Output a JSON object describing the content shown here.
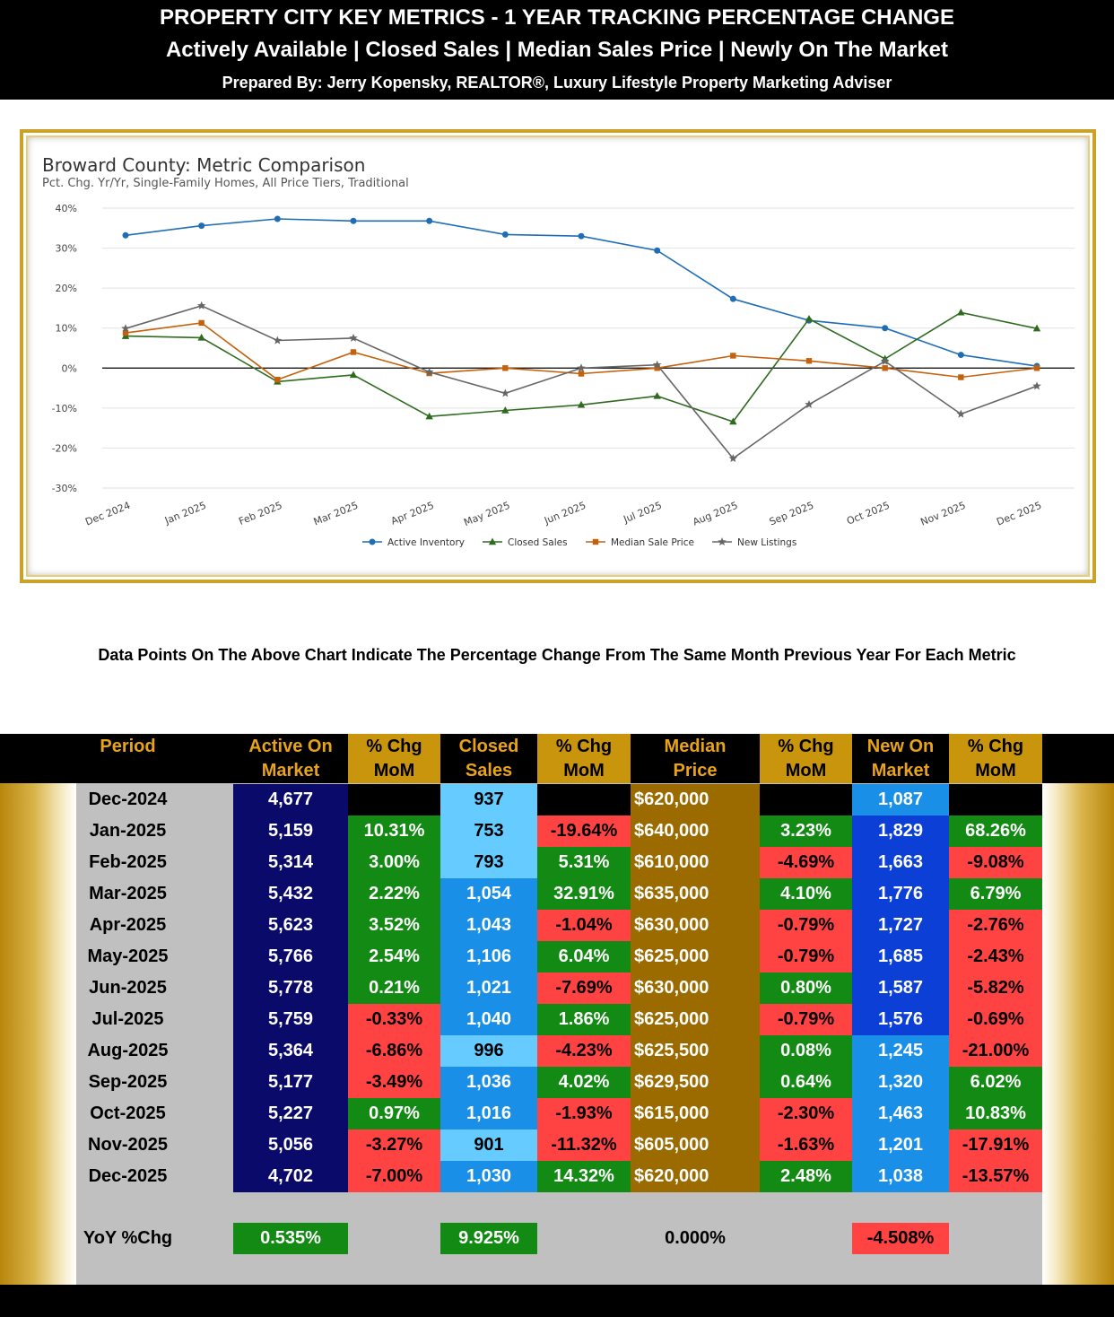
{
  "header": {
    "title": "PROPERTY CITY KEY METRICS - 1 YEAR TRACKING PERCENTAGE CHANGE",
    "subtitle": "Actively Available | Closed Sales | Median Sales Price | Newly On The Market",
    "prepared_by": "Prepared By: Jerry Kopensky, REALTOR®, Luxury Lifestyle Property Marketing Adviser"
  },
  "note": "Data Points On The Above Chart Indicate The Percentage Change From The Same Month Previous Year For Each Metric",
  "chart_data": {
    "type": "line",
    "title": "Broward County: Metric Comparison",
    "subtitle": "Pct. Chg. Yr/Yr, Single-Family Homes, All Price Tiers, Traditional",
    "x": [
      "Dec 2024",
      "Jan 2025",
      "Feb 2025",
      "Mar 2025",
      "Apr 2025",
      "May 2025",
      "Jun 2025",
      "Jul 2025",
      "Aug 2025",
      "Sep 2025",
      "Oct 2025",
      "Nov 2025",
      "Dec 2025"
    ],
    "yticks": [
      "40%",
      "30%",
      "20%",
      "10%",
      "0%",
      "-10%",
      "-20%",
      "-30%"
    ],
    "ylim": [
      -30,
      40
    ],
    "grid": true,
    "legend": "bottom",
    "series": [
      {
        "name": "Active Inventory",
        "color": "#1f6eb5",
        "marker": "circle",
        "values": [
          33.2,
          35.6,
          37.3,
          36.8,
          36.8,
          33.4,
          33.0,
          29.4,
          17.3,
          11.9,
          10.0,
          3.3,
          0.5
        ]
      },
      {
        "name": "Closed Sales",
        "color": "#2e6b1f",
        "marker": "triangle",
        "values": [
          8.0,
          7.6,
          -3.4,
          -1.7,
          -12.1,
          -10.6,
          -9.2,
          -7.0,
          -13.4,
          12.3,
          2.3,
          13.9,
          9.9
        ]
      },
      {
        "name": "Median Sale Price",
        "color": "#c5600b",
        "marker": "square",
        "values": [
          8.8,
          11.3,
          -2.9,
          4.0,
          -1.3,
          0.0,
          -1.4,
          0.0,
          3.1,
          1.8,
          0.0,
          -2.3,
          0.0
        ]
      },
      {
        "name": "New Listings",
        "color": "#666666",
        "marker": "star",
        "values": [
          9.9,
          15.6,
          6.9,
          7.5,
          -1.0,
          -6.3,
          0.0,
          0.8,
          -22.6,
          -9.1,
          1.7,
          -11.5,
          -4.5
        ]
      }
    ]
  },
  "table": {
    "headers": [
      {
        "l1": "Period",
        "l2": ""
      },
      {
        "l1": "Active On",
        "l2": "Market"
      },
      {
        "l1": "% Chg",
        "l2": "MoM"
      },
      {
        "l1": "Closed",
        "l2": "Sales"
      },
      {
        "l1": "% Chg",
        "l2": "MoM"
      },
      {
        "l1": "Median",
        "l2": "Price"
      },
      {
        "l1": "% Chg",
        "l2": "MoM"
      },
      {
        "l1": "New On",
        "l2": "Market"
      },
      {
        "l1": "% Chg",
        "l2": "MoM"
      }
    ],
    "rows": [
      {
        "period": "Dec-2024",
        "active": "4,677",
        "active_chg": "",
        "closed": "937",
        "closed_chg": "",
        "median": "$620,000",
        "median_chg": "",
        "new": "1,087",
        "new_chg": ""
      },
      {
        "period": "Jan-2025",
        "active": "5,159",
        "active_chg": "10.31%",
        "closed": "753",
        "closed_chg": "-19.64%",
        "median": "$640,000",
        "median_chg": "3.23%",
        "new": "1,829",
        "new_chg": "68.26%"
      },
      {
        "period": "Feb-2025",
        "active": "5,314",
        "active_chg": "3.00%",
        "closed": "793",
        "closed_chg": "5.31%",
        "median": "$610,000",
        "median_chg": "-4.69%",
        "new": "1,663",
        "new_chg": "-9.08%"
      },
      {
        "period": "Mar-2025",
        "active": "5,432",
        "active_chg": "2.22%",
        "closed": "1,054",
        "closed_chg": "32.91%",
        "median": "$635,000",
        "median_chg": "4.10%",
        "new": "1,776",
        "new_chg": "6.79%"
      },
      {
        "period": "Apr-2025",
        "active": "5,623",
        "active_chg": "3.52%",
        "closed": "1,043",
        "closed_chg": "-1.04%",
        "median": "$630,000",
        "median_chg": "-0.79%",
        "new": "1,727",
        "new_chg": "-2.76%"
      },
      {
        "period": "May-2025",
        "active": "5,766",
        "active_chg": "2.54%",
        "closed": "1,106",
        "closed_chg": "6.04%",
        "median": "$625,000",
        "median_chg": "-0.79%",
        "new": "1,685",
        "new_chg": "-2.43%"
      },
      {
        "period": "Jun-2025",
        "active": "5,778",
        "active_chg": "0.21%",
        "closed": "1,021",
        "closed_chg": "-7.69%",
        "median": "$630,000",
        "median_chg": "0.80%",
        "new": "1,587",
        "new_chg": "-5.82%"
      },
      {
        "period": "Jul-2025",
        "active": "5,759",
        "active_chg": "-0.33%",
        "closed": "1,040",
        "closed_chg": "1.86%",
        "median": "$625,000",
        "median_chg": "-0.79%",
        "new": "1,576",
        "new_chg": "-0.69%"
      },
      {
        "period": "Aug-2025",
        "active": "5,364",
        "active_chg": "-6.86%",
        "closed": "996",
        "closed_chg": "-4.23%",
        "median": "$625,500",
        "median_chg": "0.08%",
        "new": "1,245",
        "new_chg": "-21.00%"
      },
      {
        "period": "Sep-2025",
        "active": "5,177",
        "active_chg": "-3.49%",
        "closed": "1,036",
        "closed_chg": "4.02%",
        "median": "$629,500",
        "median_chg": "0.64%",
        "new": "1,320",
        "new_chg": "6.02%"
      },
      {
        "period": "Oct-2025",
        "active": "5,227",
        "active_chg": "0.97%",
        "closed": "1,016",
        "closed_chg": "-1.93%",
        "median": "$615,000",
        "median_chg": "-2.30%",
        "new": "1,463",
        "new_chg": "10.83%"
      },
      {
        "period": "Nov-2025",
        "active": "5,056",
        "active_chg": "-3.27%",
        "closed": "901",
        "closed_chg": "-11.32%",
        "median": "$605,000",
        "median_chg": "-1.63%",
        "new": "1,201",
        "new_chg": "-17.91%"
      },
      {
        "period": "Dec-2025",
        "active": "4,702",
        "active_chg": "-7.00%",
        "closed": "1,030",
        "closed_chg": "14.32%",
        "median": "$620,000",
        "median_chg": "2.48%",
        "new": "1,038",
        "new_chg": "-13.57%"
      }
    ],
    "yoy": {
      "label": "YoY %Chg",
      "active": "0.535%",
      "closed": "9.925%",
      "median": "0.000%",
      "new": "-4.508%"
    }
  },
  "colors": {
    "navy": "#0a0a6b",
    "green": "#138a13",
    "red": "#ff4242",
    "light_blue": "#66ccff",
    "medium_blue": "#1a8fe8",
    "royal_blue": "#0b3fd6",
    "brown": "#9c6b00",
    "gold": "#c9950c"
  }
}
